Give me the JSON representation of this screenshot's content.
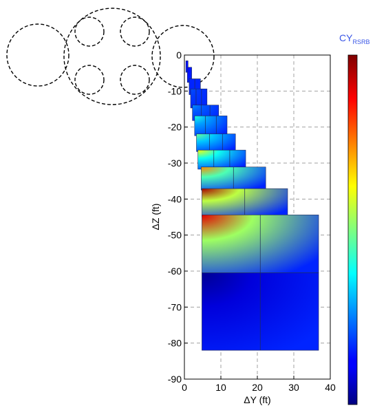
{
  "chart_data": {
    "type": "heatmap",
    "xlabel": "ΔY (ft)",
    "ylabel": "ΔZ (ft)",
    "xlim": [
      0,
      40
    ],
    "ylim": [
      -90,
      0
    ],
    "x_ticks": [
      0,
      10,
      20,
      30,
      40
    ],
    "y_ticks": [
      0,
      -10,
      -20,
      -30,
      -40,
      -50,
      -60,
      -70,
      -80,
      -90
    ],
    "grid": true,
    "colormap": "jet",
    "colorbar": {
      "title_main": "CY",
      "title_sub": "RSRB",
      "position": "right",
      "ticks": false
    },
    "blocks": [
      {
        "x": [
          0.4,
          1.0
        ],
        "y": [
          -1.6,
          -4.8
        ],
        "cols": 1,
        "intensity": 0.1
      },
      {
        "x": [
          0.8,
          2.0
        ],
        "y": [
          -3.4,
          -7.6
        ],
        "cols": 1,
        "intensity": 0.12
      },
      {
        "x": [
          1.3,
          4.4
        ],
        "y": [
          -6.6,
          -11.0
        ],
        "cols": 2,
        "intensity": 0.16
      },
      {
        "x": [
          1.7,
          6.2
        ],
        "y": [
          -9.4,
          -14.7
        ],
        "cols": 3,
        "intensity": 0.2
      },
      {
        "x": [
          2.2,
          9.4
        ],
        "y": [
          -13.9,
          -18.2
        ],
        "cols": 3,
        "intensity": 0.26
      },
      {
        "x": [
          2.8,
          11.7
        ],
        "y": [
          -16.9,
          -22.4
        ],
        "cols": 3,
        "intensity": 0.4
      },
      {
        "x": [
          3.3,
          14.0
        ],
        "y": [
          -21.9,
          -26.8
        ],
        "cols": 3,
        "intensity": 0.48
      },
      {
        "x": [
          3.7,
          16.8
        ],
        "y": [
          -26.4,
          -31.7
        ],
        "cols": 3,
        "intensity": 0.62
      },
      {
        "x": [
          4.6,
          22.3
        ],
        "y": [
          -31.1,
          -37.5
        ],
        "cols": 2,
        "intensity": 0.74
      },
      {
        "x": [
          4.8,
          28.3
        ],
        "y": [
          -37.1,
          -44.9
        ],
        "cols": 2,
        "intensity": 0.96
      },
      {
        "x": [
          4.8,
          36.8
        ],
        "y": [
          -44.4,
          -60.5
        ],
        "cols": 2,
        "intensity": 0.9
      },
      {
        "x": [
          4.8,
          36.8
        ],
        "y": [
          -60.5,
          -82.0
        ],
        "cols": 2,
        "intensity": 0.02
      }
    ]
  }
}
